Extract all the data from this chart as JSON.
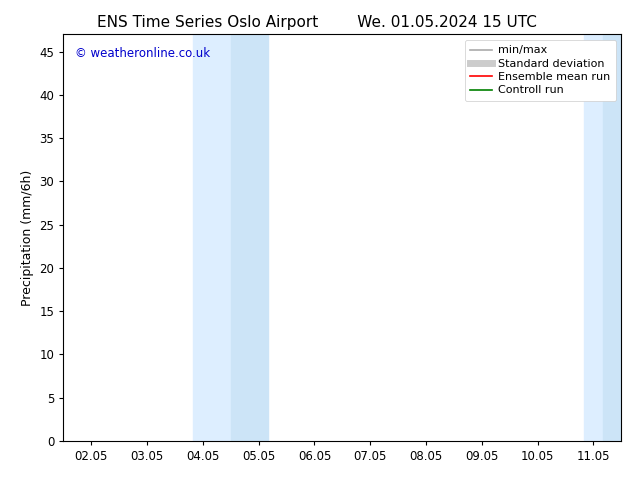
{
  "title_left": "ENS Time Series Oslo Airport",
  "title_right": "We. 01.05.2024 15 UTC",
  "ylabel": "Precipitation (mm/6h)",
  "xlabel": "",
  "background_color": "#ffffff",
  "plot_bg_color": "#ffffff",
  "ylim": [
    0,
    47
  ],
  "yticks": [
    0,
    5,
    10,
    15,
    20,
    25,
    30,
    35,
    40,
    45
  ],
  "xtick_labels": [
    "02.05",
    "03.05",
    "04.05",
    "05.05",
    "06.05",
    "07.05",
    "08.05",
    "09.05",
    "10.05",
    "11.05"
  ],
  "xtick_positions": [
    0,
    1,
    2,
    3,
    4,
    5,
    6,
    7,
    8,
    9
  ],
  "shaded_regions": [
    {
      "xstart": 1.83,
      "xend": 2.5,
      "color": "#ddeeff"
    },
    {
      "xstart": 2.5,
      "xend": 3.17,
      "color": "#cce4f7"
    },
    {
      "xstart": 8.83,
      "xend": 9.17,
      "color": "#ddeeff"
    },
    {
      "xstart": 9.17,
      "xend": 9.5,
      "color": "#cce4f7"
    }
  ],
  "watermark_text": "© weatheronline.co.uk",
  "watermark_color": "#0000cc",
  "legend_items": [
    {
      "label": "min/max",
      "color": "#aaaaaa",
      "lw": 1.2,
      "style": "solid"
    },
    {
      "label": "Standard deviation",
      "color": "#cccccc",
      "lw": 5,
      "style": "solid"
    },
    {
      "label": "Ensemble mean run",
      "color": "#ff0000",
      "lw": 1.2,
      "style": "solid"
    },
    {
      "label": "Controll run",
      "color": "#008000",
      "lw": 1.2,
      "style": "solid"
    }
  ],
  "title_fontsize": 11,
  "axis_label_fontsize": 9,
  "tick_fontsize": 8.5,
  "watermark_fontsize": 8.5,
  "legend_fontsize": 8
}
